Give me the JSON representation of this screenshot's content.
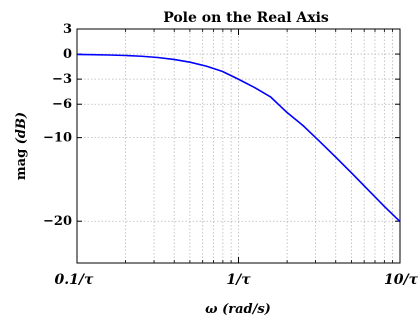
{
  "chart_data": {
    "type": "line",
    "title": "Pole on the Real Axis",
    "xlabel": "ω (rad/s)",
    "ylabel": "mag (dB)",
    "x_scale": "log",
    "x_unit_label": "ωτ",
    "xlim": [
      0.1,
      10
    ],
    "ylim": [
      -25,
      3
    ],
    "xtick_values": [
      0.1,
      1,
      10
    ],
    "xtick_labels": [
      "0.1/τ",
      "1/τ",
      "10/τ"
    ],
    "ytick_values": [
      3,
      0,
      -3,
      -6,
      -10,
      -20
    ],
    "ytick_labels": [
      "3",
      "0",
      "−3",
      "−6",
      "−10",
      "−20"
    ],
    "grid": true,
    "series": [
      {
        "color": "#0000ff",
        "x": [
          0.1,
          0.126,
          0.158,
          0.2,
          0.251,
          0.316,
          0.398,
          0.501,
          0.631,
          0.794,
          1,
          1.259,
          1.585,
          1.995,
          2.512,
          3.162,
          3.981,
          5.012,
          6.31,
          7.943,
          10
        ],
        "y": [
          -0.04,
          -0.07,
          -0.11,
          -0.17,
          -0.26,
          -0.41,
          -0.64,
          -0.97,
          -1.44,
          -2.07,
          -3.01,
          -4.01,
          -5.15,
          -6.98,
          -8.56,
          -10.41,
          -12.3,
          -14.22,
          -16.2,
          -18.17,
          -20.04
        ]
      }
    ]
  },
  "page": {
    "title": "Pole on the Real Axis",
    "ylabel_text": "mag ",
    "ylabel_unit": "(dB)",
    "xlabel_symbol": "ω ",
    "xlabel_unit": "(rad/s)"
  }
}
